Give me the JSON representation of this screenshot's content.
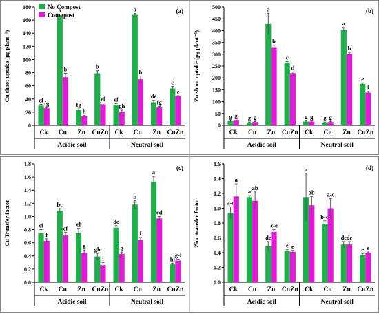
{
  "colors": {
    "no_compost": "#1fae4b",
    "comopost": "#e01bd6",
    "error_bar": "#555555"
  },
  "chart_data": [
    {
      "type": "bar",
      "panel_label": "(a)",
      "ylabel": "Cu shoot uptake (µg plant⁻¹)",
      "ylim": [
        0,
        180
      ],
      "yticks": [
        0,
        20,
        40,
        60,
        80,
        100,
        120,
        140,
        160,
        180
      ],
      "legend": {
        "show": true,
        "placement": "top-left",
        "entries": [
          "No Compost",
          "Comopost"
        ]
      },
      "groups": [
        "Acidic soil",
        "Neutral soil"
      ],
      "categories": [
        "Ck",
        "Cu",
        "Zn",
        "CuZn",
        "Ck",
        "Cu",
        "Zn",
        "CuZn"
      ],
      "series": [
        {
          "name": "No Compost",
          "values": [
            30,
            167,
            23,
            79,
            31,
            168,
            35,
            56
          ],
          "errors": [
            2,
            2,
            2,
            4,
            2,
            2,
            3,
            3
          ],
          "letters": [
            "ef",
            "a",
            "fg",
            "b",
            "ef",
            "a",
            "de",
            "c"
          ]
        },
        {
          "name": "Comopost",
          "values": [
            26,
            73,
            14,
            32,
            21,
            70,
            27,
            44
          ],
          "errors": [
            1,
            6,
            1,
            2,
            2,
            5,
            2,
            1
          ],
          "letters": [
            "fg",
            "b",
            "h",
            "ef",
            "gh",
            "b",
            "fg",
            "e"
          ]
        }
      ]
    },
    {
      "type": "bar",
      "panel_label": "(b)",
      "ylabel": "Zn shoot uptake (µg plant⁻¹)",
      "ylim": [
        0,
        500
      ],
      "yticks": [
        0,
        50,
        100,
        150,
        200,
        250,
        300,
        350,
        400,
        450,
        500
      ],
      "legend": {
        "show": false
      },
      "groups": [
        "Acidic soil",
        "Neutral soil"
      ],
      "categories": [
        "Ck",
        "Cu",
        "Zn",
        "CuZn",
        "Ck",
        "Cu",
        "Zn",
        "CuZn"
      ],
      "series": [
        {
          "name": "No Compost",
          "values": [
            18,
            12,
            428,
            265,
            16,
            12,
            403,
            175
          ],
          "errors": [
            3,
            2,
            45,
            4,
            3,
            2,
            10,
            4
          ],
          "letters": [
            "g",
            "g",
            "a",
            "c",
            "g",
            "g",
            "a",
            "e"
          ]
        },
        {
          "name": "Comopost",
          "values": [
            20,
            14,
            330,
            220,
            16,
            14,
            302,
            138
          ],
          "errors": [
            3,
            2,
            8,
            5,
            3,
            2,
            6,
            5
          ],
          "letters": [
            "g",
            "g",
            "b",
            "d",
            "g",
            "g",
            "b",
            "f"
          ]
        }
      ]
    },
    {
      "type": "bar",
      "panel_label": "(c)",
      "ylabel": "Cu Transfer factor",
      "ylim": [
        0,
        1.8
      ],
      "yticks": [
        0,
        0.2,
        0.4,
        0.6,
        0.8,
        1.0,
        1.2,
        1.4,
        1.6,
        1.8
      ],
      "decimals": 1,
      "legend": {
        "show": false
      },
      "groups": [
        "Acidic soil",
        "Neutral soil"
      ],
      "categories": [
        "Ck",
        "Cu",
        "Zn",
        "CuZn",
        "Ck",
        "Cu",
        "Zn",
        "CuZn"
      ],
      "series": [
        {
          "name": "No Compost",
          "values": [
            0.75,
            1.09,
            0.75,
            0.39,
            0.83,
            1.18,
            1.53,
            0.27
          ],
          "errors": [
            0.05,
            0.03,
            0.07,
            0.05,
            0.03,
            0.06,
            0.08,
            0.02
          ],
          "letters": [
            "ef",
            "bc",
            "ef",
            "gh",
            "de",
            "b",
            "a",
            "hi"
          ]
        },
        {
          "name": "Comopost",
          "values": [
            0.63,
            0.71,
            0.45,
            0.26,
            0.43,
            0.64,
            0.97,
            0.33
          ],
          "errors": [
            0.03,
            0.05,
            0.04,
            0.04,
            0.03,
            0.04,
            0.03,
            0.02
          ],
          "letters": [
            "f",
            "ef",
            "g",
            "i",
            "g",
            "f",
            "cd",
            "g-i"
          ]
        }
      ]
    },
    {
      "type": "bar",
      "panel_label": "(d)",
      "ylabel": "Zinc transfer factor",
      "ylim": [
        0,
        1.6
      ],
      "yticks": [
        0,
        0.2,
        0.4,
        0.6,
        0.8,
        1.0,
        1.2,
        1.4,
        1.6
      ],
      "decimals": 1,
      "legend": {
        "show": false
      },
      "groups": [
        "Acidic soil",
        "Neutral soil"
      ],
      "categories": [
        "Ck",
        "Cu",
        "Zn",
        "CuZn",
        "Ck",
        "Cu",
        "Zn",
        "CuZn"
      ],
      "series": [
        {
          "name": "No Compost",
          "values": [
            0.94,
            1.15,
            0.49,
            0.42,
            1.15,
            0.79,
            0.51,
            0.37
          ],
          "errors": [
            0.08,
            0.02,
            0.06,
            0.02,
            0.32,
            0.04,
            0.04,
            0.02
          ],
          "letters": [
            "a-c",
            "a",
            "de",
            "e",
            "a",
            "b-d",
            "de",
            "e"
          ]
        },
        {
          "name": "Comopost",
          "values": [
            1.16,
            1.1,
            0.68,
            0.41,
            1.04,
            1.0,
            0.51,
            0.4
          ],
          "errors": [
            0.17,
            0.12,
            0.03,
            0.02,
            0.12,
            0.13,
            0.04,
            0.01
          ],
          "letters": [
            "a",
            "ab",
            "c-e",
            "e",
            "ab",
            "a-c",
            "de",
            "e"
          ]
        }
      ]
    }
  ]
}
